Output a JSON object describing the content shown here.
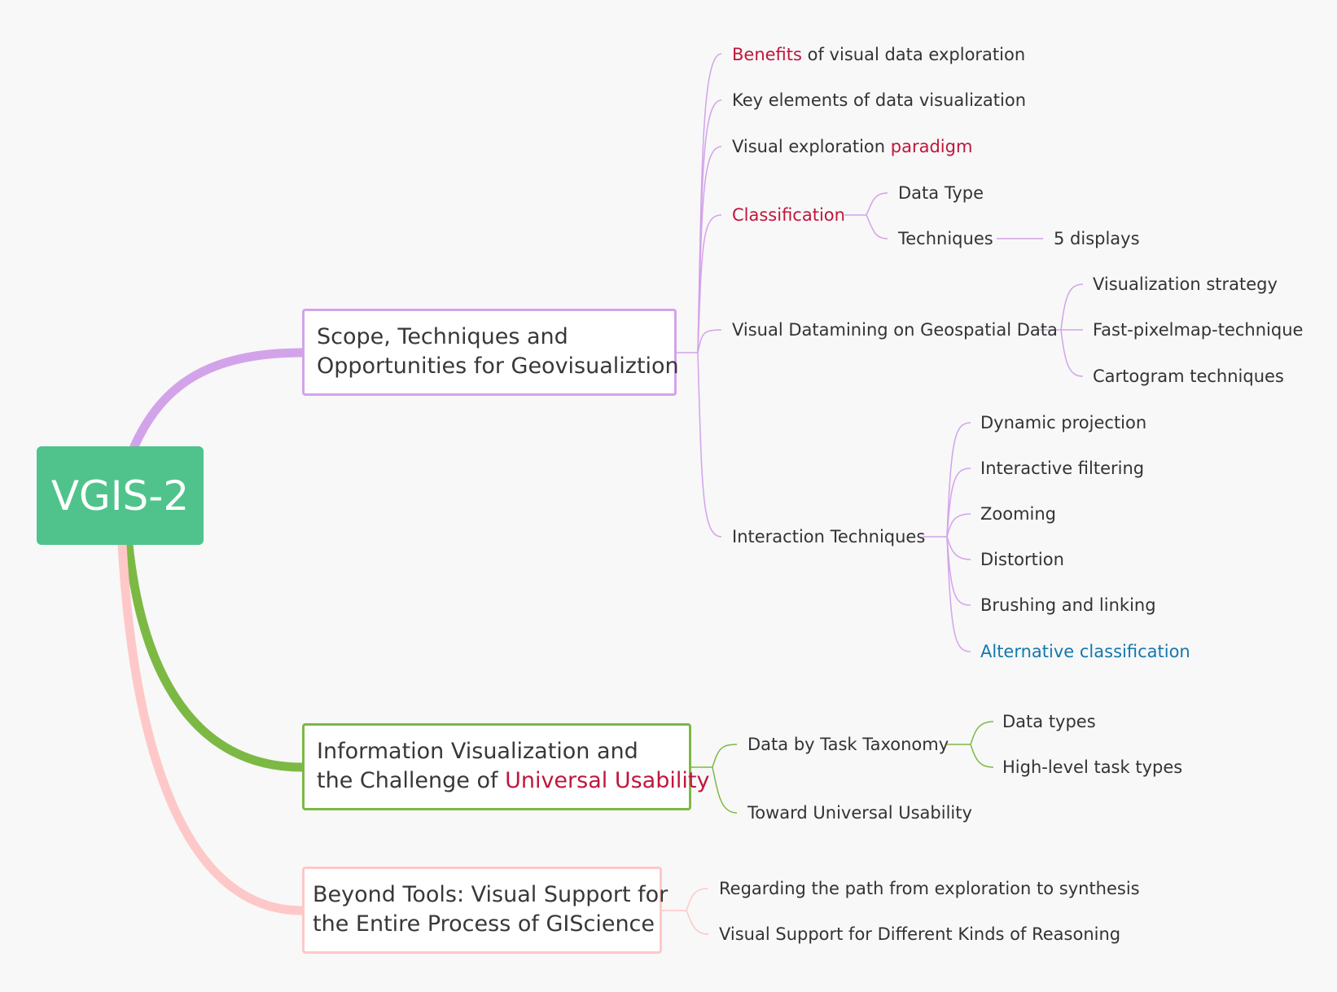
{
  "root": {
    "label": "VGIS-2"
  },
  "colors": {
    "root": "#4fc38b",
    "purple_branch": "#d3a3ea",
    "green_branch": "#7cb944",
    "pink_branch": "#fec8c8",
    "highlight_text": "#c0163b",
    "link_text": "#1478ad"
  },
  "topics": {
    "scope": {
      "line1": "Scope, Techniques and",
      "line2": "Opportunities for Geovisualiztion",
      "children": {
        "benefits": {
          "highlight": "Benefits",
          "rest": " of visual data exploration"
        },
        "key_elements": {
          "label": "Key elements of data visualization"
        },
        "visual_exploration": {
          "prefix": "Visual exploration ",
          "highlight": "paradigm"
        },
        "classification": {
          "label": "Classification",
          "data_type": "Data Type",
          "techniques": "Techniques",
          "displays": "5 displays"
        },
        "datamining": {
          "label": "Visual Datamining on Geospatial Data",
          "items": [
            "Visualization strategy",
            "Fast-pixelmap-technique",
            "Cartogram techniques"
          ]
        },
        "interaction": {
          "label": "Interaction Techniques",
          "items": [
            "Dynamic projection",
            "Interactive filtering",
            "Zooming",
            "Distortion",
            "Brushing and linking"
          ],
          "alt": "Alternative classification"
        }
      }
    },
    "infovis": {
      "line1": "Information Visualization and",
      "line2_prefix": "the Challenge of ",
      "line2_highlight": "Universal Usability",
      "children": {
        "taxonomy": {
          "label": "Data by Task Taxonomy",
          "items": [
            "Data types",
            "High-level task types"
          ]
        },
        "toward": {
          "label": "Toward Universal Usability"
        }
      }
    },
    "beyond": {
      "line1": "Beyond Tools: Visual Support for",
      "line2": "the Entire Process of GIScience",
      "children": {
        "path": {
          "label": "Regarding the path from exploration to synthesis"
        },
        "reasoning": {
          "label": "Visual Support for Different Kinds of Reasoning"
        }
      }
    }
  }
}
